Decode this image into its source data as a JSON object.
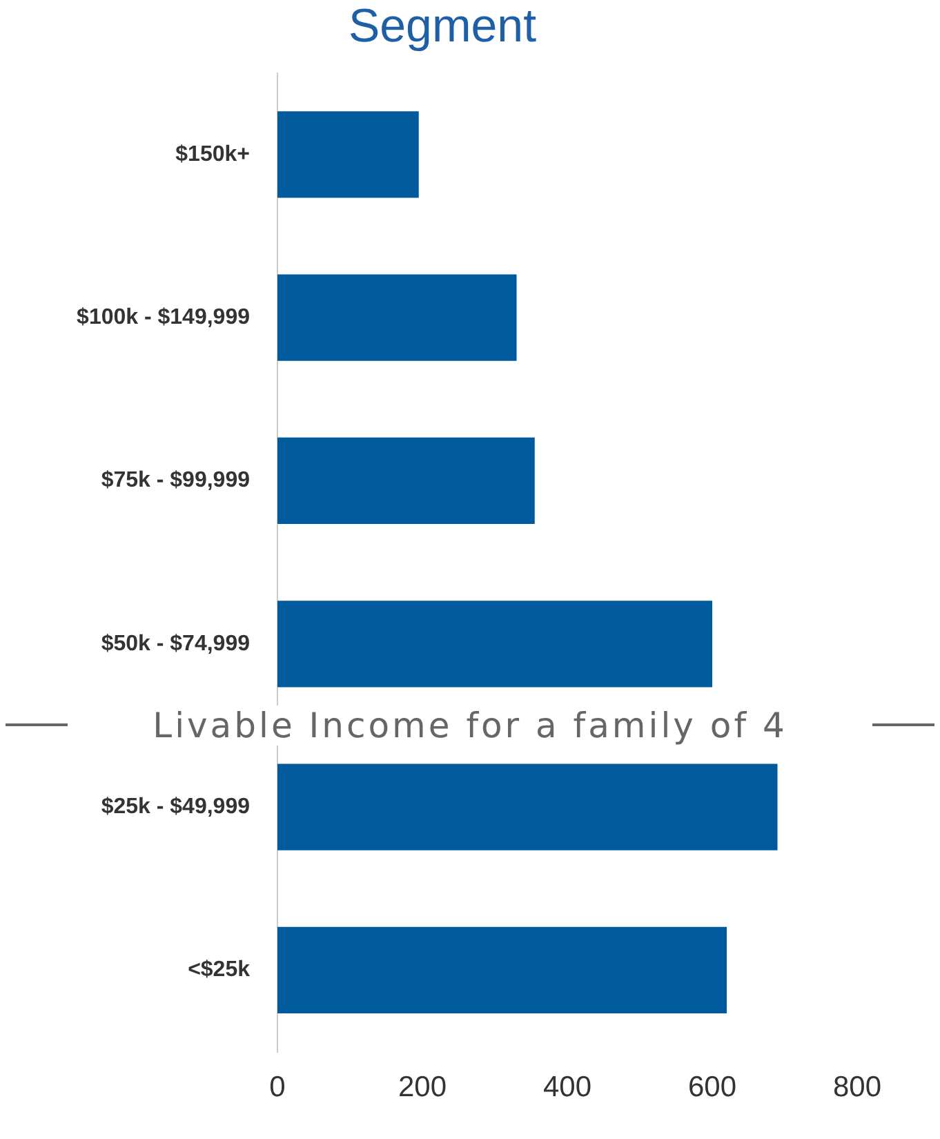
{
  "chart_data": {
    "type": "bar",
    "orientation": "horizontal",
    "title": "Segment",
    "categories": [
      "$150k+",
      "$100k - $149,999",
      "$75k - $99,999",
      "$50k - $74,999",
      "$25k - $49,999",
      "<$25k"
    ],
    "values": [
      195,
      330,
      355,
      600,
      690,
      620
    ],
    "color": "#005a9c",
    "xlim": [
      0,
      800
    ],
    "xticks": [
      0,
      200,
      400,
      600,
      800
    ],
    "grid": false,
    "legend": false,
    "annotations": [
      "Livable Income for a family of 4"
    ]
  }
}
